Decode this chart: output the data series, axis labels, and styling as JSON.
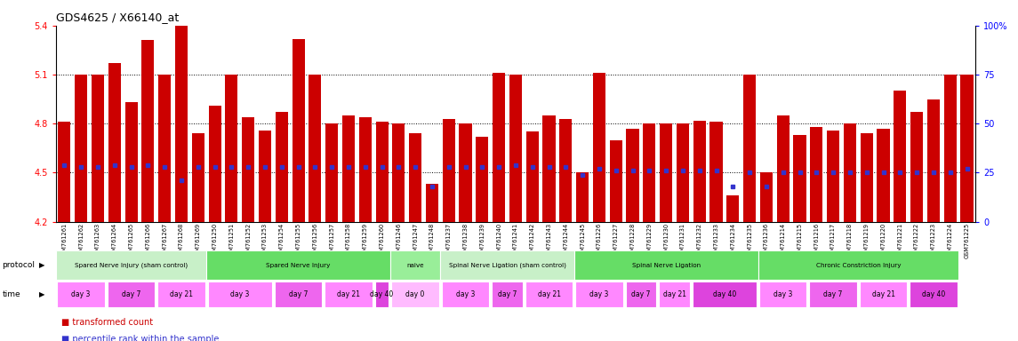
{
  "title": "GDS4625 / X66140_at",
  "samples": [
    "GSM761261",
    "GSM761262",
    "GSM761263",
    "GSM761264",
    "GSM761265",
    "GSM761266",
    "GSM761267",
    "GSM761268",
    "GSM761269",
    "GSM761250",
    "GSM761251",
    "GSM761252",
    "GSM761253",
    "GSM761254",
    "GSM761255",
    "GSM761256",
    "GSM761257",
    "GSM761258",
    "GSM761259",
    "GSM761260",
    "GSM761246",
    "GSM761247",
    "GSM761248",
    "GSM761237",
    "GSM761238",
    "GSM761239",
    "GSM761240",
    "GSM761241",
    "GSM761242",
    "GSM761243",
    "GSM761244",
    "GSM761245",
    "GSM761226",
    "GSM761227",
    "GSM761228",
    "GSM761229",
    "GSM761230",
    "GSM761231",
    "GSM761232",
    "GSM761233",
    "GSM761234",
    "GSM761235",
    "GSM761236",
    "GSM761214",
    "GSM761215",
    "GSM761216",
    "GSM761217",
    "GSM761218",
    "GSM761219",
    "GSM761220",
    "GSM761221",
    "GSM761222",
    "GSM761223",
    "GSM761224",
    "GSM761225"
  ],
  "bar_values": [
    4.81,
    5.1,
    5.1,
    5.17,
    4.93,
    5.31,
    5.1,
    5.4,
    4.74,
    4.91,
    5.1,
    4.84,
    4.76,
    4.87,
    5.32,
    5.1,
    4.8,
    4.85,
    4.84,
    4.81,
    4.8,
    4.74,
    4.43,
    4.83,
    4.8,
    4.72,
    5.11,
    5.1,
    4.75,
    4.85,
    4.83,
    4.5,
    5.11,
    4.7,
    4.77,
    4.8,
    4.8,
    4.8,
    4.82,
    4.81,
    4.36,
    5.1,
    4.5,
    4.85,
    4.73,
    4.78,
    4.76,
    4.8,
    4.74,
    4.77,
    5.0,
    4.87,
    4.95,
    5.1,
    5.1
  ],
  "percentile_pct": [
    29,
    28,
    28,
    29,
    28,
    29,
    28,
    21,
    28,
    28,
    28,
    28,
    28,
    28,
    28,
    28,
    28,
    28,
    28,
    28,
    28,
    28,
    18,
    28,
    28,
    28,
    28,
    29,
    28,
    28,
    28,
    24,
    27,
    26,
    26,
    26,
    26,
    26,
    26,
    26,
    18,
    25,
    18,
    25,
    25,
    25,
    25,
    25,
    25,
    25,
    25,
    25,
    25,
    25,
    27
  ],
  "ylim": [
    4.2,
    5.4
  ],
  "y_left_ticks": [
    4.2,
    4.5,
    4.8,
    5.1,
    5.4
  ],
  "y_right_ticks": [
    0,
    25,
    50,
    75,
    100
  ],
  "dotted_lines": [
    4.5,
    4.8,
    5.1
  ],
  "bar_color": "#cc0000",
  "percentile_color": "#3333cc",
  "bar_baseline": 4.2,
  "protocols": [
    {
      "label": "Spared Nerve Injury (sham control)",
      "start": 0,
      "end": 9,
      "color": "#c8f0c8"
    },
    {
      "label": "Spared Nerve Injury",
      "start": 9,
      "end": 20,
      "color": "#66dd66"
    },
    {
      "label": "naive",
      "start": 20,
      "end": 23,
      "color": "#99ee99"
    },
    {
      "label": "Spinal Nerve Ligation (sham control)",
      "start": 23,
      "end": 31,
      "color": "#c8f0c8"
    },
    {
      "label": "Spinal Nerve Ligation",
      "start": 31,
      "end": 42,
      "color": "#66dd66"
    },
    {
      "label": "Chronic Constriction Injury",
      "start": 42,
      "end": 54,
      "color": "#66dd66"
    }
  ],
  "times": [
    {
      "label": "day 3",
      "start": 0,
      "end": 3,
      "color": "#ff88ff"
    },
    {
      "label": "day 7",
      "start": 3,
      "end": 6,
      "color": "#ee66ee"
    },
    {
      "label": "day 21",
      "start": 6,
      "end": 9,
      "color": "#ff88ff"
    },
    {
      "label": "day 3",
      "start": 9,
      "end": 13,
      "color": "#ff88ff"
    },
    {
      "label": "day 7",
      "start": 13,
      "end": 16,
      "color": "#ee66ee"
    },
    {
      "label": "day 21",
      "start": 16,
      "end": 19,
      "color": "#ff88ff"
    },
    {
      "label": "day 40",
      "start": 19,
      "end": 20,
      "color": "#dd44dd"
    },
    {
      "label": "day 0",
      "start": 20,
      "end": 23,
      "color": "#ffbbff"
    },
    {
      "label": "day 3",
      "start": 23,
      "end": 26,
      "color": "#ff88ff"
    },
    {
      "label": "day 7",
      "start": 26,
      "end": 28,
      "color": "#ee66ee"
    },
    {
      "label": "day 21",
      "start": 28,
      "end": 31,
      "color": "#ff88ff"
    },
    {
      "label": "day 3",
      "start": 31,
      "end": 34,
      "color": "#ff88ff"
    },
    {
      "label": "day 7",
      "start": 34,
      "end": 36,
      "color": "#ee66ee"
    },
    {
      "label": "day 21",
      "start": 36,
      "end": 38,
      "color": "#ff88ff"
    },
    {
      "label": "day 40",
      "start": 38,
      "end": 42,
      "color": "#dd44dd"
    },
    {
      "label": "day 3",
      "start": 42,
      "end": 45,
      "color": "#ff88ff"
    },
    {
      "label": "day 7",
      "start": 45,
      "end": 48,
      "color": "#ee66ee"
    },
    {
      "label": "day 21",
      "start": 48,
      "end": 51,
      "color": "#ff88ff"
    },
    {
      "label": "day 40",
      "start": 51,
      "end": 54,
      "color": "#dd44dd"
    }
  ]
}
